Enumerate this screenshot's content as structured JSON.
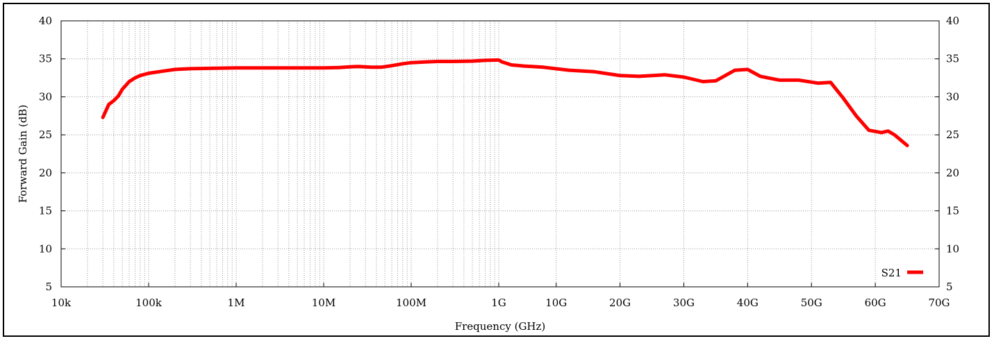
{
  "chart_data": {
    "type": "line",
    "title": "",
    "xlabel": "Frequency (GHz)",
    "ylabel": "Forward Gain (dB)",
    "ylim": [
      5,
      40
    ],
    "y_ticks": [
      5,
      10,
      15,
      20,
      25,
      30,
      35,
      40
    ],
    "y_tick_labels": [
      "5",
      "10",
      "15",
      "20",
      "25",
      "30",
      "35",
      "40"
    ],
    "y2_tick_labels": [
      "5",
      "10",
      "15",
      "20",
      "25",
      "30",
      "35",
      "40"
    ],
    "x_scale": "log up to 1G, linear in GHz from 1G to 70G",
    "x_tick_labels": [
      "10k",
      "100k",
      "1M",
      "10M",
      "100M",
      "1G",
      "10G",
      "20G",
      "30G",
      "40G",
      "50G",
      "60G",
      "70G"
    ],
    "grid": true,
    "legend_position": "bottom-right",
    "series": [
      {
        "name": "S21",
        "color": "#ff0000",
        "points": [
          [
            "30k",
            27.3
          ],
          [
            "35k",
            29.0
          ],
          [
            "40k",
            29.5
          ],
          [
            "45k",
            30.1
          ],
          [
            "50k",
            31.0
          ],
          [
            "60k",
            32.0
          ],
          [
            "70k",
            32.5
          ],
          [
            "80k",
            32.8
          ],
          [
            "100k",
            33.1
          ],
          [
            "150k",
            33.4
          ],
          [
            "200k",
            33.6
          ],
          [
            "300k",
            33.7
          ],
          [
            "500k",
            33.75
          ],
          [
            "1M",
            33.8
          ],
          [
            "2M",
            33.8
          ],
          [
            "5M",
            33.8
          ],
          [
            "10M",
            33.8
          ],
          [
            "15M",
            33.85
          ],
          [
            "20M",
            33.95
          ],
          [
            "25M",
            34.0
          ],
          [
            "35M",
            33.9
          ],
          [
            "45M",
            33.9
          ],
          [
            "60M",
            34.1
          ],
          [
            "80M",
            34.35
          ],
          [
            "100M",
            34.5
          ],
          [
            "150M",
            34.6
          ],
          [
            "200M",
            34.65
          ],
          [
            "300M",
            34.65
          ],
          [
            "500M",
            34.7
          ],
          [
            "700M",
            34.8
          ],
          [
            "1G",
            34.85
          ],
          [
            "1.5G",
            34.6
          ],
          [
            "3G",
            34.2
          ],
          [
            "5G",
            34.05
          ],
          [
            "8G",
            33.9
          ],
          [
            "12G",
            33.5
          ],
          [
            "16G",
            33.3
          ],
          [
            "20G",
            32.8
          ],
          [
            "23G",
            32.7
          ],
          [
            "27G",
            32.9
          ],
          [
            "30G",
            32.6
          ],
          [
            "33G",
            32.0
          ],
          [
            "35G",
            32.1
          ],
          [
            "38G",
            33.5
          ],
          [
            "40G",
            33.6
          ],
          [
            "42G",
            32.7
          ],
          [
            "45G",
            32.2
          ],
          [
            "48G",
            32.2
          ],
          [
            "51G",
            31.8
          ],
          [
            "53G",
            31.9
          ],
          [
            "55G",
            29.8
          ],
          [
            "57G",
            27.5
          ],
          [
            "59G",
            25.6
          ],
          [
            "61G",
            25.3
          ],
          [
            "62G",
            25.5
          ],
          [
            "63G",
            25.0
          ],
          [
            "64G",
            24.3
          ],
          [
            "65G",
            23.6
          ]
        ]
      }
    ]
  }
}
